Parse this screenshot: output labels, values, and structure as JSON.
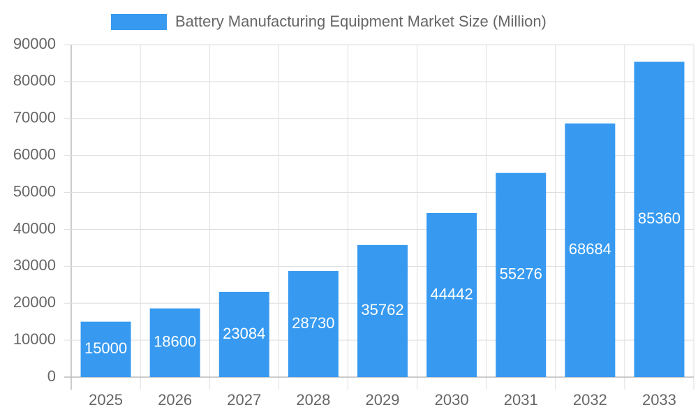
{
  "chart_data": {
    "type": "bar",
    "series": [
      {
        "name": "Battery Manufacturing Equipment Market Size (Million)",
        "color": "#379af0",
        "values": [
          15000,
          18600,
          23084,
          28730,
          35762,
          44442,
          55276,
          68684,
          85360
        ]
      }
    ],
    "categories": [
      "2025",
      "2026",
      "2027",
      "2028",
      "2029",
      "2030",
      "2031",
      "2032",
      "2033"
    ],
    "ylim": [
      0,
      90000
    ],
    "yticks": [
      0,
      10000,
      20000,
      30000,
      40000,
      50000,
      60000,
      70000,
      80000,
      90000
    ],
    "grid": true,
    "legend": "top"
  }
}
